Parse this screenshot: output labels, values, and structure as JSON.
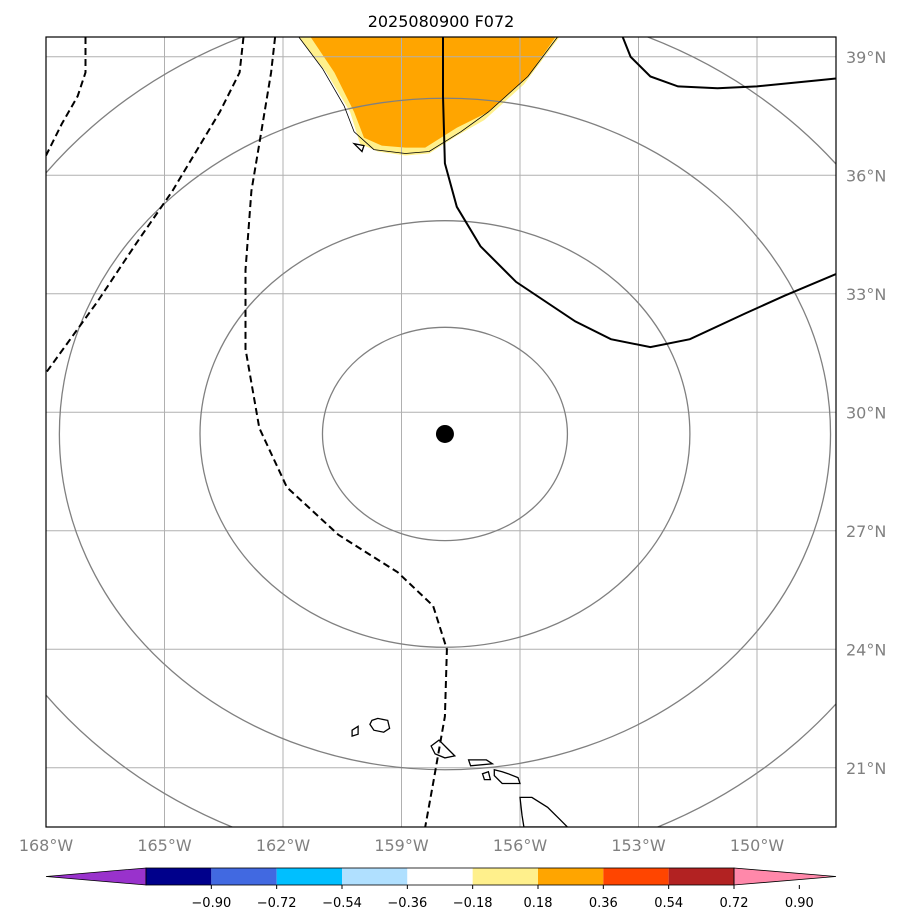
{
  "title": "2025080900 F072",
  "map": {
    "lon_range": [
      -168,
      -148
    ],
    "lat_range": [
      19.5,
      39.5
    ],
    "gridline_color": "#b0b0b0",
    "label_color": "#808080",
    "lon_ticks": [
      {
        "value": -168,
        "label": "168°W"
      },
      {
        "value": -165,
        "label": "165°W"
      },
      {
        "value": -162,
        "label": "162°W"
      },
      {
        "value": -159,
        "label": "159°W"
      },
      {
        "value": -156,
        "label": "156°W"
      },
      {
        "value": -153,
        "label": "153°W"
      },
      {
        "value": -150,
        "label": "150°W"
      }
    ],
    "lat_ticks": [
      {
        "value": 21,
        "label": "21°N"
      },
      {
        "value": 24,
        "label": "24°N"
      },
      {
        "value": 27,
        "label": "27°N"
      },
      {
        "value": 30,
        "label": "30°N"
      },
      {
        "value": 33,
        "label": "33°N"
      },
      {
        "value": 36,
        "label": "36°N"
      },
      {
        "value": 39,
        "label": "39°N"
      }
    ],
    "storm_center": {
      "lon": -157.9,
      "lat": 29.45
    },
    "range_rings_deg": [
      2.7,
      5.4,
      8.5,
      11.0
    ],
    "shaded_field": {
      "name": "anomaly",
      "inner_color": "#ffa500",
      "outer_color": "#fff08c",
      "outer_polygon": [
        [
          -161.6,
          39.5
        ],
        [
          -160.9,
          38.6
        ],
        [
          -160.3,
          37.6
        ],
        [
          -160.05,
          36.8
        ],
        [
          -159.6,
          36.6
        ],
        [
          -158.9,
          36.5
        ],
        [
          -158.3,
          36.55
        ],
        [
          -157.6,
          37.0
        ],
        [
          -156.9,
          37.4
        ],
        [
          -155.9,
          38.3
        ],
        [
          -155.0,
          39.5
        ]
      ],
      "inner_polygon": [
        [
          -161.3,
          39.5
        ],
        [
          -160.7,
          38.6
        ],
        [
          -160.2,
          37.6
        ],
        [
          -159.95,
          36.95
        ],
        [
          -159.5,
          36.75
        ],
        [
          -158.9,
          36.7
        ],
        [
          -158.4,
          36.7
        ],
        [
          -157.6,
          37.2
        ],
        [
          -156.8,
          37.6
        ],
        [
          -155.8,
          38.5
        ],
        [
          -155.1,
          39.5
        ]
      ]
    },
    "contours": [
      {
        "style": "solid",
        "points": [
          [
            -157.95,
            39.5
          ],
          [
            -157.95,
            38.0
          ],
          [
            -157.9,
            36.3
          ],
          [
            -157.6,
            35.2
          ],
          [
            -157.0,
            34.2
          ],
          [
            -156.1,
            33.3
          ],
          [
            -154.6,
            32.3
          ],
          [
            -153.7,
            31.85
          ],
          [
            -152.7,
            31.65
          ],
          [
            -151.7,
            31.85
          ],
          [
            -150.3,
            32.5
          ],
          [
            -149.3,
            32.95
          ],
          [
            -148.0,
            33.5
          ]
        ]
      },
      {
        "style": "solid",
        "points": [
          [
            -153.4,
            39.5
          ],
          [
            -153.2,
            39.0
          ],
          [
            -152.7,
            38.5
          ],
          [
            -152.0,
            38.25
          ],
          [
            -151.0,
            38.2
          ],
          [
            -150.0,
            38.25
          ],
          [
            -148.5,
            38.4
          ],
          [
            -148.0,
            38.45
          ]
        ]
      },
      {
        "style": "dashed",
        "points": [
          [
            -162.2,
            39.5
          ],
          [
            -162.3,
            38.6
          ],
          [
            -162.55,
            37.1
          ],
          [
            -162.8,
            35.6
          ],
          [
            -162.95,
            33.6
          ],
          [
            -162.95,
            31.6
          ],
          [
            -162.6,
            29.6
          ],
          [
            -161.9,
            28.1
          ],
          [
            -160.6,
            26.9
          ],
          [
            -159.1,
            25.95
          ],
          [
            -158.2,
            25.1
          ],
          [
            -157.85,
            24.0
          ],
          [
            -157.9,
            22.3
          ],
          [
            -158.2,
            20.6
          ],
          [
            -158.4,
            19.5
          ]
        ]
      },
      {
        "style": "dashed",
        "points": [
          [
            -163.0,
            39.5
          ],
          [
            -163.1,
            38.6
          ],
          [
            -163.6,
            37.6
          ],
          [
            -164.2,
            36.6
          ],
          [
            -164.8,
            35.6
          ],
          [
            -165.7,
            34.3
          ],
          [
            -166.7,
            32.8
          ],
          [
            -168.0,
            31.0
          ]
        ]
      },
      {
        "style": "dashed",
        "points": [
          [
            -167.0,
            39.5
          ],
          [
            -167.0,
            38.6
          ],
          [
            -167.2,
            38.0
          ],
          [
            -167.6,
            37.3
          ],
          [
            -168.0,
            36.5
          ]
        ]
      }
    ],
    "coastlines": [
      [
        [
          -161.6,
          39.5
        ],
        [
          -161.0,
          38.7
        ],
        [
          -160.45,
          37.75
        ],
        [
          -160.2,
          37.1
        ],
        [
          -159.7,
          36.65
        ],
        [
          -158.9,
          36.55
        ],
        [
          -158.3,
          36.6
        ],
        [
          -157.5,
          37.1
        ],
        [
          -156.8,
          37.6
        ],
        [
          -155.8,
          38.5
        ],
        [
          -155.05,
          39.5
        ]
      ],
      [
        [
          -160.2,
          36.8
        ],
        [
          -160.0,
          36.6
        ],
        [
          -159.95,
          36.75
        ],
        [
          -160.2,
          36.8
        ]
      ],
      [
        [
          -159.75,
          22.2
        ],
        [
          -159.6,
          22.25
        ],
        [
          -159.35,
          22.2
        ],
        [
          -159.3,
          22.0
        ],
        [
          -159.45,
          21.9
        ],
        [
          -159.7,
          21.95
        ],
        [
          -159.8,
          22.1
        ],
        [
          -159.75,
          22.2
        ]
      ],
      [
        [
          -160.25,
          21.95
        ],
        [
          -160.1,
          22.05
        ],
        [
          -160.1,
          21.85
        ],
        [
          -160.25,
          21.8
        ],
        [
          -160.25,
          21.95
        ]
      ],
      [
        [
          -158.25,
          21.55
        ],
        [
          -158.05,
          21.7
        ],
        [
          -157.85,
          21.5
        ],
        [
          -157.65,
          21.3
        ],
        [
          -157.9,
          21.25
        ],
        [
          -158.15,
          21.35
        ],
        [
          -158.25,
          21.55
        ]
      ],
      [
        [
          -157.3,
          21.2
        ],
        [
          -156.85,
          21.2
        ],
        [
          -156.7,
          21.1
        ],
        [
          -157.25,
          21.05
        ],
        [
          -157.3,
          21.2
        ]
      ],
      [
        [
          -156.95,
          20.85
        ],
        [
          -156.8,
          20.9
        ],
        [
          -156.75,
          20.7
        ],
        [
          -156.9,
          20.7
        ],
        [
          -156.95,
          20.85
        ]
      ],
      [
        [
          -156.65,
          20.95
        ],
        [
          -156.45,
          20.9
        ],
        [
          -156.3,
          20.85
        ],
        [
          -156.05,
          20.75
        ],
        [
          -156.0,
          20.6
        ],
        [
          -156.45,
          20.6
        ],
        [
          -156.65,
          20.8
        ],
        [
          -156.65,
          20.95
        ]
      ],
      [
        [
          -156.0,
          20.25
        ],
        [
          -155.7,
          20.25
        ],
        [
          -155.3,
          20.0
        ],
        [
          -155.0,
          19.7
        ],
        [
          -154.8,
          19.5
        ],
        [
          -155.9,
          19.5
        ],
        [
          -155.95,
          19.8
        ],
        [
          -156.0,
          20.25
        ]
      ]
    ]
  },
  "colorbar": {
    "ticks": [
      "−0.90",
      "−0.72",
      "−0.54",
      "−0.36",
      "−0.18",
      "0.18",
      "0.36",
      "0.54",
      "0.72",
      "0.90"
    ],
    "colors": [
      "#9932cc",
      "#00008b",
      "#4169e1",
      "#00bfff",
      "#b0e0ff",
      "#ffffff",
      "#fff08c",
      "#ffa500",
      "#ff4500",
      "#b22222",
      "#ff88aa"
    ]
  }
}
